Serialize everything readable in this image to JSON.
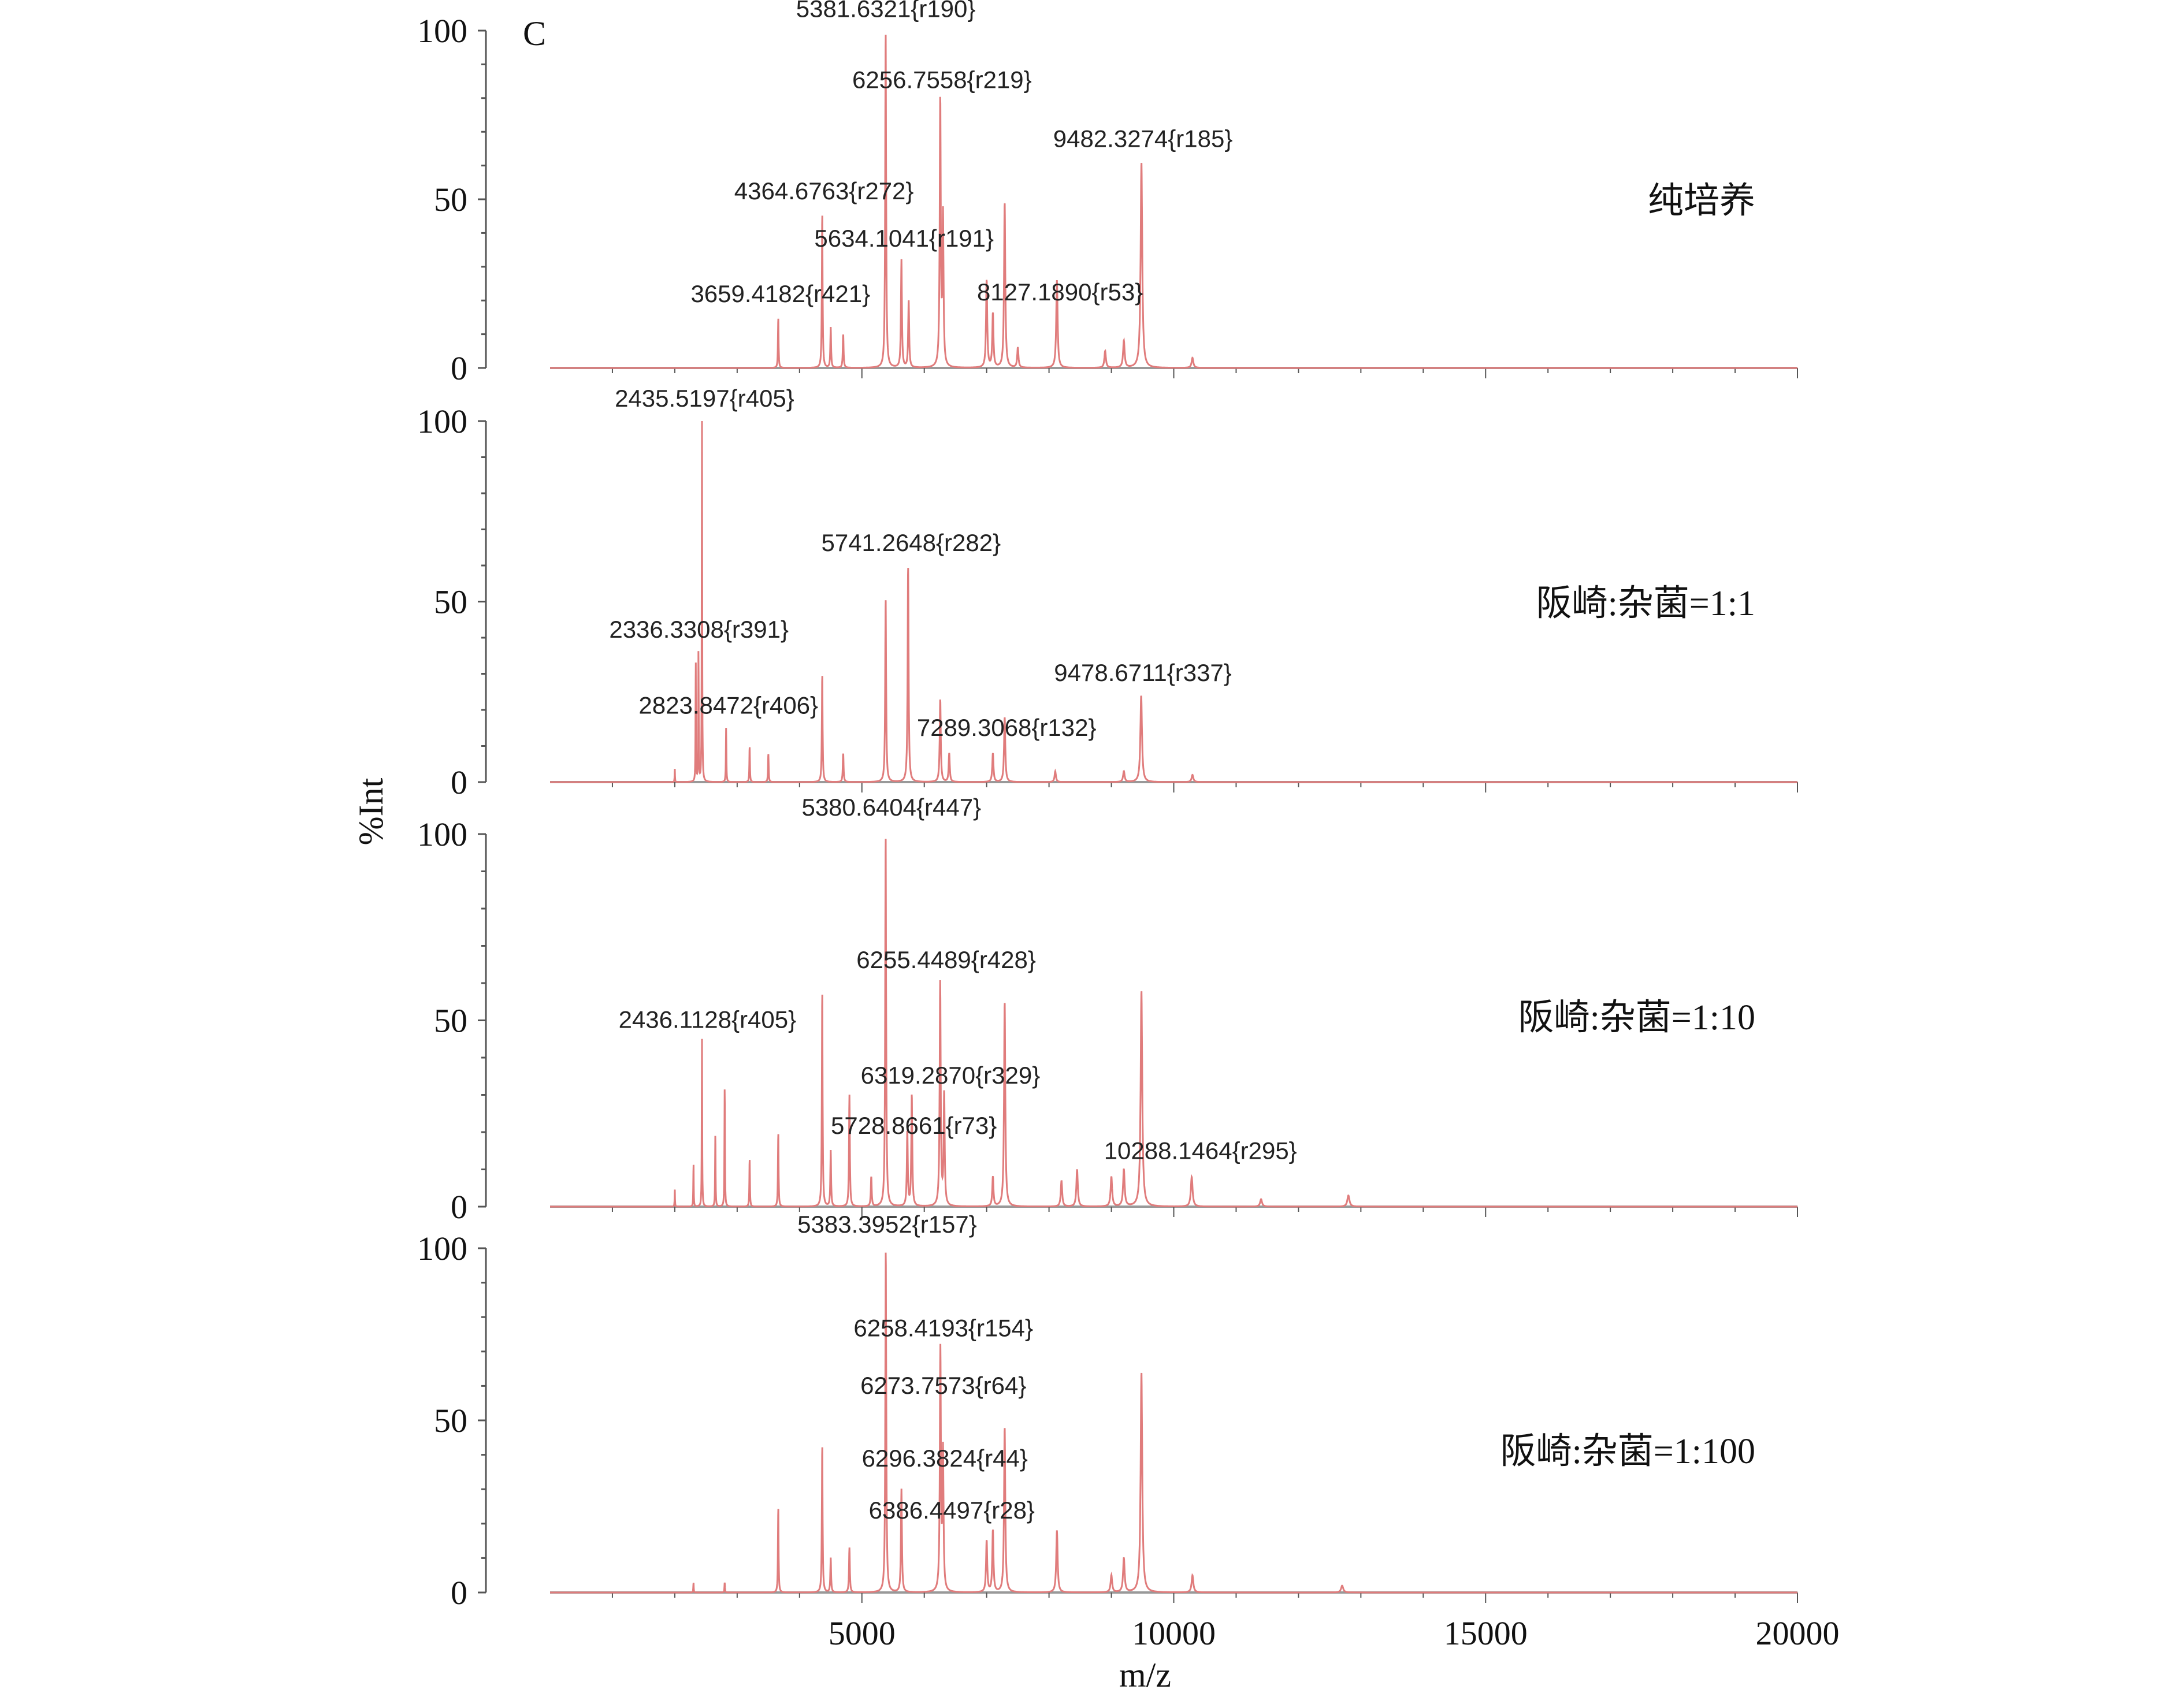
{
  "chart_data": {
    "type": "line",
    "panel_letter": "C",
    "xlabel": "m/z",
    "ylabel": "%Int",
    "xlim": [
      0,
      20000
    ],
    "ylim": [
      0,
      100
    ],
    "x_ticks": [
      5000,
      10000,
      15000,
      20000
    ],
    "y_ticks": [
      0,
      50,
      100
    ],
    "line_color": "#e07c7c",
    "axis_color": "#555555",
    "panels": [
      {
        "label": "纯培养",
        "peaks": [
          [
            3659,
            15
          ],
          [
            4364,
            46
          ],
          [
            4500,
            12
          ],
          [
            4700,
            10
          ],
          [
            5381,
            100
          ],
          [
            5634,
            32
          ],
          [
            5750,
            20
          ],
          [
            6256,
            79
          ],
          [
            6300,
            44
          ],
          [
            7000,
            26
          ],
          [
            7100,
            16
          ],
          [
            7289,
            49
          ],
          [
            7500,
            6
          ],
          [
            8127,
            26
          ],
          [
            8900,
            5
          ],
          [
            9200,
            8
          ],
          [
            9482,
            61
          ],
          [
            10300,
            3
          ]
        ],
        "annotations": [
          {
            "text": "5381.6321{r190}",
            "mz": 5383,
            "y": 104
          },
          {
            "text": "6256.7558{r219}",
            "mz": 6284,
            "y": 83
          },
          {
            "text": "9482.3274{r185}",
            "mz": 9505,
            "y": 65.5
          },
          {
            "text": "4364.6763{r272}",
            "mz": 4392,
            "y": 50
          },
          {
            "text": "5634.1041{r191}",
            "mz": 5676,
            "y": 36
          },
          {
            "text": "3659.4182{r421}",
            "mz": 3694,
            "y": 19.5
          },
          {
            "text": "8127.1890{r53}",
            "mz": 8176,
            "y": 20
          }
        ]
      },
      {
        "label": "阪崎:杂菌=1:1",
        "peaks": [
          [
            2000,
            4
          ],
          [
            2336,
            35
          ],
          [
            2380,
            38
          ],
          [
            2436,
            100
          ],
          [
            2823,
            15
          ],
          [
            3200,
            10
          ],
          [
            3500,
            8
          ],
          [
            4364,
            30
          ],
          [
            4700,
            8
          ],
          [
            5381,
            51
          ],
          [
            5741,
            60
          ],
          [
            6256,
            23
          ],
          [
            6400,
            8
          ],
          [
            7100,
            8
          ],
          [
            7289,
            18
          ],
          [
            8100,
            3
          ],
          [
            9200,
            3
          ],
          [
            9478,
            24
          ],
          [
            10300,
            2
          ]
        ],
        "annotations": [
          {
            "text": "2435.5197{r405}",
            "mz": 2477,
            "y": 104
          },
          {
            "text": "5741.2648{r282}",
            "mz": 5788,
            "y": 64
          },
          {
            "text": "2336.3308{r391}",
            "mz": 2387,
            "y": 40
          },
          {
            "text": "2823.8472{r406}",
            "mz": 2860,
            "y": 19
          },
          {
            "text": "9478.6711{r337}",
            "mz": 9505,
            "y": 28
          },
          {
            "text": "7289.3068{r132}",
            "mz": 7320,
            "y": 12.8
          }
        ]
      },
      {
        "label": "阪崎:杂菌=1:10",
        "peaks": [
          [
            2000,
            5
          ],
          [
            2300,
            12
          ],
          [
            2436,
            45
          ],
          [
            2650,
            20
          ],
          [
            2800,
            33
          ],
          [
            3200,
            13
          ],
          [
            3659,
            20
          ],
          [
            4364,
            58
          ],
          [
            4500,
            15
          ],
          [
            4800,
            30
          ],
          [
            5150,
            8
          ],
          [
            5381,
            100
          ],
          [
            5728,
            20
          ],
          [
            5800,
            30
          ],
          [
            6255,
            60
          ],
          [
            6319,
            30
          ],
          [
            7100,
            8
          ],
          [
            7289,
            55
          ],
          [
            8200,
            7
          ],
          [
            8450,
            10
          ],
          [
            9000,
            8
          ],
          [
            9200,
            10
          ],
          [
            9482,
            58
          ],
          [
            10288,
            8
          ],
          [
            11400,
            2
          ],
          [
            12800,
            3
          ]
        ],
        "annotations": [
          {
            "text": "5380.6404{r447}",
            "mz": 5473,
            "y": 105
          },
          {
            "text": "6255.4489{r428}",
            "mz": 6351,
            "y": 64
          },
          {
            "text": "2436.1128{r405}",
            "mz": 2523,
            "y": 48
          },
          {
            "text": "6319.2870{r329}",
            "mz": 6419,
            "y": 33
          },
          {
            "text": "5728.8661{r73}",
            "mz": 5833,
            "y": 19.5
          },
          {
            "text": "10288.1464{r295}",
            "mz": 10428,
            "y": 12.8
          }
        ]
      },
      {
        "label": "阪崎:杂菌=1:100",
        "peaks": [
          [
            2300,
            3
          ],
          [
            2800,
            3
          ],
          [
            3659,
            25
          ],
          [
            4364,
            43
          ],
          [
            4500,
            10
          ],
          [
            4800,
            13
          ],
          [
            5383,
            100
          ],
          [
            5634,
            30
          ],
          [
            6258,
            70
          ],
          [
            6300,
            40
          ],
          [
            7000,
            15
          ],
          [
            7100,
            18
          ],
          [
            7289,
            48
          ],
          [
            8127,
            18
          ],
          [
            9000,
            5
          ],
          [
            9200,
            10
          ],
          [
            9482,
            64
          ],
          [
            10300,
            5
          ],
          [
            12700,
            2
          ]
        ],
        "annotations": [
          {
            "text": "5383.3952{r157}",
            "mz": 5405,
            "y": 104.5
          },
          {
            "text": "6258.4193{r154}",
            "mz": 6306,
            "y": 74.4
          },
          {
            "text": "6273.7573{r64}",
            "mz": 6306,
            "y": 57.7
          },
          {
            "text": "6296.3824{r44}",
            "mz": 6329,
            "y": 36.6
          },
          {
            "text": "6386.4497{r28}",
            "mz": 6441,
            "y": 21.5
          }
        ]
      }
    ]
  }
}
